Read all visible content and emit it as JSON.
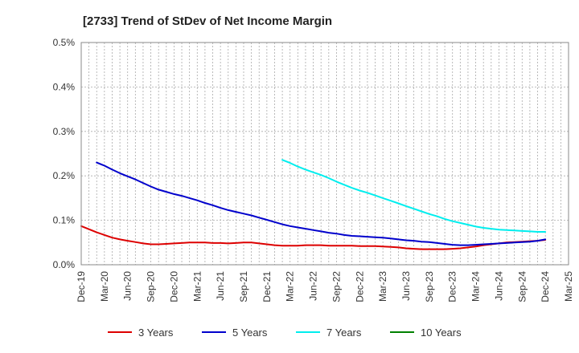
{
  "chart_data": {
    "type": "line",
    "title": "[2733]  Trend of StDev of Net Income Margin",
    "xlabel": "",
    "ylabel": "",
    "x_tick_labels": [
      "Dec-19",
      "Mar-20",
      "Jun-20",
      "Sep-20",
      "Dec-20",
      "Mar-21",
      "Jun-21",
      "Sep-21",
      "Dec-21",
      "Mar-22",
      "Jun-22",
      "Sep-22",
      "Dec-22",
      "Mar-23",
      "Jun-23",
      "Sep-23",
      "Dec-23",
      "Mar-24",
      "Jun-24",
      "Sep-24",
      "Dec-24",
      "Mar-25"
    ],
    "y_tick_labels": [
      "0.0%",
      "0.1%",
      "0.2%",
      "0.3%",
      "0.4%",
      "0.5%"
    ],
    "ylim": [
      0,
      0.5
    ],
    "y_unit": "%",
    "grid": true,
    "legend_position": "bottom",
    "series": [
      {
        "name": "3 Years",
        "color": "#dd0000",
        "points": [
          [
            "Dec-19",
            0.087
          ],
          [
            "Jan-20",
            0.08
          ],
          [
            "Feb-20",
            0.073
          ],
          [
            "Mar-20",
            0.067
          ],
          [
            "Apr-20",
            0.061
          ],
          [
            "May-20",
            0.057
          ],
          [
            "Jun-20",
            0.054
          ],
          [
            "Jul-20",
            0.051
          ],
          [
            "Aug-20",
            0.048
          ],
          [
            "Sep-20",
            0.046
          ],
          [
            "Oct-20",
            0.046
          ],
          [
            "Nov-20",
            0.047
          ],
          [
            "Dec-20",
            0.048
          ],
          [
            "Jan-21",
            0.049
          ],
          [
            "Feb-21",
            0.05
          ],
          [
            "Mar-21",
            0.05
          ],
          [
            "Apr-21",
            0.05
          ],
          [
            "May-21",
            0.049
          ],
          [
            "Jun-21",
            0.049
          ],
          [
            "Jul-21",
            0.048
          ],
          [
            "Aug-21",
            0.049
          ],
          [
            "Sep-21",
            0.05
          ],
          [
            "Oct-21",
            0.05
          ],
          [
            "Nov-21",
            0.048
          ],
          [
            "Dec-21",
            0.046
          ],
          [
            "Jan-22",
            0.044
          ],
          [
            "Feb-22",
            0.043
          ],
          [
            "Mar-22",
            0.043
          ],
          [
            "Apr-22",
            0.043
          ],
          [
            "May-22",
            0.044
          ],
          [
            "Jun-22",
            0.044
          ],
          [
            "Jul-22",
            0.044
          ],
          [
            "Aug-22",
            0.043
          ],
          [
            "Sep-22",
            0.043
          ],
          [
            "Oct-22",
            0.043
          ],
          [
            "Nov-22",
            0.043
          ],
          [
            "Dec-22",
            0.042
          ],
          [
            "Jan-23",
            0.042
          ],
          [
            "Feb-23",
            0.042
          ],
          [
            "Mar-23",
            0.041
          ],
          [
            "Apr-23",
            0.04
          ],
          [
            "May-23",
            0.039
          ],
          [
            "Jun-23",
            0.037
          ],
          [
            "Jul-23",
            0.036
          ],
          [
            "Aug-23",
            0.035
          ],
          [
            "Sep-23",
            0.035
          ],
          [
            "Oct-23",
            0.035
          ],
          [
            "Nov-23",
            0.035
          ],
          [
            "Dec-23",
            0.036
          ],
          [
            "Jan-24",
            0.037
          ],
          [
            "Feb-24",
            0.039
          ],
          [
            "Mar-24",
            0.041
          ],
          [
            "Apr-24",
            0.044
          ],
          [
            "May-24",
            0.046
          ],
          [
            "Jun-24",
            0.048
          ],
          [
            "Jul-24",
            0.05
          ],
          [
            "Aug-24",
            0.051
          ],
          [
            "Sep-24",
            0.052
          ],
          [
            "Oct-24",
            0.053
          ],
          [
            "Nov-24",
            0.054
          ],
          [
            "Dec-24",
            0.056
          ]
        ]
      },
      {
        "name": "5 Years",
        "color": "#0000cc",
        "points": [
          [
            "Feb-20",
            0.23
          ],
          [
            "Mar-20",
            0.223
          ],
          [
            "Apr-20",
            0.214
          ],
          [
            "May-20",
            0.206
          ],
          [
            "Jun-20",
            0.199
          ],
          [
            "Jul-20",
            0.192
          ],
          [
            "Aug-20",
            0.184
          ],
          [
            "Sep-20",
            0.176
          ],
          [
            "Oct-20",
            0.169
          ],
          [
            "Nov-20",
            0.164
          ],
          [
            "Dec-20",
            0.159
          ],
          [
            "Jan-21",
            0.155
          ],
          [
            "Feb-21",
            0.15
          ],
          [
            "Mar-21",
            0.145
          ],
          [
            "Apr-21",
            0.139
          ],
          [
            "May-21",
            0.134
          ],
          [
            "Jun-21",
            0.128
          ],
          [
            "Jul-21",
            0.123
          ],
          [
            "Aug-21",
            0.119
          ],
          [
            "Sep-21",
            0.115
          ],
          [
            "Oct-21",
            0.111
          ],
          [
            "Nov-21",
            0.106
          ],
          [
            "Dec-21",
            0.101
          ],
          [
            "Jan-22",
            0.096
          ],
          [
            "Feb-22",
            0.091
          ],
          [
            "Mar-22",
            0.087
          ],
          [
            "Apr-22",
            0.084
          ],
          [
            "May-22",
            0.081
          ],
          [
            "Jun-22",
            0.078
          ],
          [
            "Jul-22",
            0.075
          ],
          [
            "Aug-22",
            0.072
          ],
          [
            "Sep-22",
            0.07
          ],
          [
            "Oct-22",
            0.067
          ],
          [
            "Nov-22",
            0.065
          ],
          [
            "Dec-22",
            0.064
          ],
          [
            "Jan-23",
            0.063
          ],
          [
            "Feb-23",
            0.062
          ],
          [
            "Mar-23",
            0.061
          ],
          [
            "Apr-23",
            0.059
          ],
          [
            "May-23",
            0.057
          ],
          [
            "Jun-23",
            0.055
          ],
          [
            "Jul-23",
            0.054
          ],
          [
            "Aug-23",
            0.052
          ],
          [
            "Sep-23",
            0.051
          ],
          [
            "Oct-23",
            0.049
          ],
          [
            "Nov-23",
            0.047
          ],
          [
            "Dec-23",
            0.045
          ],
          [
            "Jan-24",
            0.044
          ],
          [
            "Feb-24",
            0.044
          ],
          [
            "Mar-24",
            0.045
          ],
          [
            "Apr-24",
            0.046
          ],
          [
            "May-24",
            0.047
          ],
          [
            "Jun-24",
            0.048
          ],
          [
            "Jul-24",
            0.049
          ],
          [
            "Aug-24",
            0.05
          ],
          [
            "Sep-24",
            0.051
          ],
          [
            "Oct-24",
            0.052
          ],
          [
            "Nov-24",
            0.054
          ],
          [
            "Dec-24",
            0.057
          ]
        ]
      },
      {
        "name": "7 Years",
        "color": "#00eeee",
        "points": [
          [
            "Feb-22",
            0.236
          ],
          [
            "Mar-22",
            0.229
          ],
          [
            "Apr-22",
            0.221
          ],
          [
            "May-22",
            0.214
          ],
          [
            "Jun-22",
            0.208
          ],
          [
            "Jul-22",
            0.202
          ],
          [
            "Aug-22",
            0.195
          ],
          [
            "Sep-22",
            0.187
          ],
          [
            "Oct-22",
            0.18
          ],
          [
            "Nov-22",
            0.173
          ],
          [
            "Dec-22",
            0.167
          ],
          [
            "Jan-23",
            0.162
          ],
          [
            "Feb-23",
            0.156
          ],
          [
            "Mar-23",
            0.15
          ],
          [
            "Apr-23",
            0.144
          ],
          [
            "May-23",
            0.138
          ],
          [
            "Jun-23",
            0.132
          ],
          [
            "Jul-23",
            0.126
          ],
          [
            "Aug-23",
            0.12
          ],
          [
            "Sep-23",
            0.114
          ],
          [
            "Oct-23",
            0.109
          ],
          [
            "Nov-23",
            0.103
          ],
          [
            "Dec-23",
            0.098
          ],
          [
            "Jan-24",
            0.094
          ],
          [
            "Feb-24",
            0.09
          ],
          [
            "Mar-24",
            0.086
          ],
          [
            "Apr-24",
            0.083
          ],
          [
            "May-24",
            0.081
          ],
          [
            "Jun-24",
            0.079
          ],
          [
            "Jul-24",
            0.078
          ],
          [
            "Aug-24",
            0.077
          ],
          [
            "Sep-24",
            0.076
          ],
          [
            "Oct-24",
            0.075
          ],
          [
            "Nov-24",
            0.074
          ],
          [
            "Dec-24",
            0.074
          ]
        ]
      },
      {
        "name": "10 Years",
        "color": "#008000",
        "points": []
      }
    ]
  }
}
